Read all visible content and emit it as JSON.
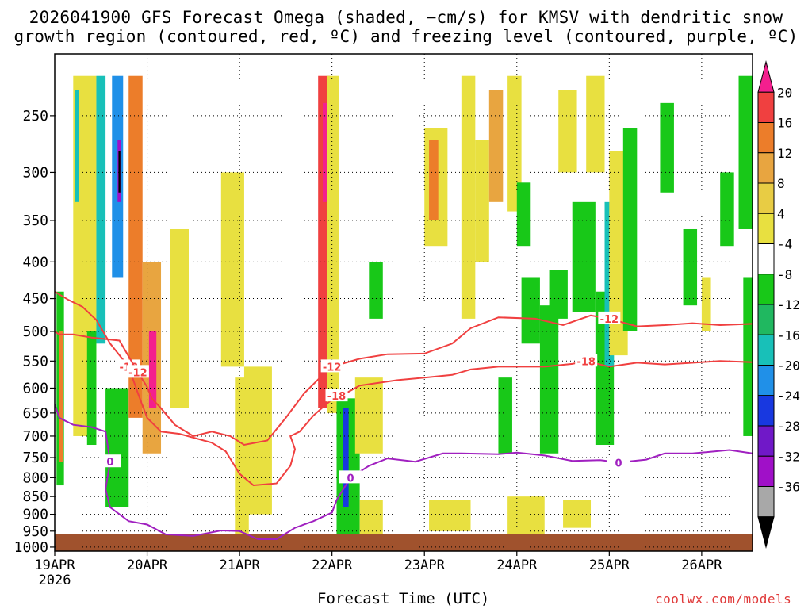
{
  "title": {
    "line1": "2026041900 GFS Forecast Omega (shaded, −cm/s) for KMSV with dendritic snow",
    "line2": "growth region (contoured, red, ºC) and freezing level (contoured, purple, ºC)"
  },
  "credit": "coolwx.com/models",
  "chart_data": {
    "type": "heatmap",
    "xlabel": "Forecast Time (UTC)",
    "x_ticks": [
      "19APR",
      "20APR",
      "21APR",
      "22APR",
      "23APR",
      "24APR",
      "25APR",
      "26APR"
    ],
    "x_year": "2026",
    "xlim_days": [
      0,
      7.55
    ],
    "y_ticks": [
      250,
      300,
      350,
      400,
      450,
      500,
      550,
      600,
      650,
      700,
      750,
      800,
      850,
      900,
      950,
      1000
    ],
    "y_tick_labels": [
      "250",
      "300",
      "350",
      "400",
      "450",
      "500",
      "550",
      "600",
      "650",
      "700",
      "750",
      "800",
      "850",
      "900",
      "950",
      "1000"
    ],
    "ylim_hPa": [
      205,
      1013
    ],
    "y_scale": "log-pressure",
    "grid": "dotted",
    "colorbar": {
      "labels": [
        "20",
        "16",
        "12",
        "8",
        "4",
        "-4",
        "-8",
        "-12",
        "-16",
        "-20",
        "-24",
        "-28",
        "-32",
        "-36"
      ],
      "colors": [
        "#f41f8e",
        "#f04040",
        "#ec7d2a",
        "#e8a540",
        "#e8cc44",
        "#e8e040",
        "#ffffff",
        "#18c818",
        "#20b860",
        "#18c0b8",
        "#2090e8",
        "#1838e0",
        "#7018c8",
        "#a010c8",
        "#a8a8a8",
        "#000000"
      ]
    },
    "terrain_color": "#a0522d",
    "contours": [
      {
        "label": "-18",
        "color": "#f04040",
        "points": [
          [
            0.0,
            440
          ],
          [
            0.05,
            444
          ],
          [
            0.15,
            452
          ],
          [
            0.3,
            462
          ],
          [
            0.45,
            482
          ],
          [
            0.6,
            520
          ],
          [
            0.8,
            560
          ],
          [
            0.9,
            610
          ],
          [
            1.0,
            660
          ],
          [
            1.15,
            690
          ],
          [
            1.35,
            695
          ],
          [
            1.7,
            715
          ],
          [
            1.85,
            735
          ],
          [
            2.0,
            790
          ],
          [
            2.15,
            820
          ],
          [
            2.4,
            815
          ],
          [
            2.55,
            770
          ],
          [
            2.6,
            730
          ],
          [
            2.55,
            700
          ],
          [
            2.65,
            690
          ],
          [
            2.8,
            655
          ],
          [
            2.95,
            630
          ],
          [
            3.05,
            615
          ],
          [
            3.15,
            610
          ],
          [
            3.3,
            595
          ],
          [
            3.5,
            590
          ],
          [
            3.7,
            585
          ],
          [
            4.0,
            580
          ],
          [
            4.3,
            575
          ],
          [
            4.5,
            565
          ],
          [
            4.8,
            560
          ],
          [
            5.0,
            560
          ],
          [
            5.3,
            560
          ],
          [
            5.6,
            555
          ],
          [
            5.75,
            550
          ],
          [
            6.0,
            560
          ],
          [
            6.3,
            553
          ],
          [
            6.6,
            556
          ],
          [
            7.0,
            552
          ],
          [
            7.2,
            550
          ],
          [
            7.55,
            552
          ]
        ]
      },
      {
        "label": "-12",
        "color": "#f04040",
        "points": [
          [
            0.0,
            500
          ],
          [
            0.05,
            505
          ],
          [
            0.2,
            505
          ],
          [
            0.4,
            510
          ],
          [
            0.7,
            515
          ],
          [
            0.9,
            570
          ],
          [
            1.0,
            598
          ],
          [
            1.05,
            620
          ],
          [
            1.15,
            640
          ],
          [
            1.3,
            675
          ],
          [
            1.5,
            700
          ],
          [
            1.7,
            690
          ],
          [
            1.9,
            700
          ],
          [
            2.05,
            720
          ],
          [
            2.3,
            710
          ],
          [
            2.5,
            660
          ],
          [
            2.7,
            610
          ],
          [
            2.9,
            575
          ],
          [
            3.0,
            560
          ],
          [
            3.3,
            546
          ],
          [
            3.6,
            538
          ],
          [
            4.0,
            537
          ],
          [
            4.3,
            520
          ],
          [
            4.5,
            495
          ],
          [
            4.8,
            478
          ],
          [
            5.2,
            480
          ],
          [
            5.5,
            490
          ],
          [
            5.8,
            475
          ],
          [
            6.0,
            480
          ],
          [
            6.3,
            492
          ],
          [
            6.6,
            490
          ],
          [
            6.9,
            487
          ],
          [
            7.2,
            490
          ],
          [
            7.55,
            488
          ]
        ]
      },
      {
        "label": "0",
        "color": "#a020c0",
        "points": [
          [
            0.0,
            632
          ],
          [
            0.05,
            660
          ],
          [
            0.2,
            675
          ],
          [
            0.4,
            680
          ],
          [
            0.55,
            690
          ],
          [
            0.6,
            760
          ],
          [
            0.55,
            830
          ],
          [
            0.6,
            880
          ],
          [
            0.8,
            920
          ],
          [
            1.0,
            930
          ],
          [
            1.2,
            960
          ],
          [
            1.5,
            965
          ],
          [
            1.8,
            948
          ],
          [
            2.0,
            950
          ],
          [
            2.2,
            975
          ],
          [
            2.4,
            975
          ],
          [
            2.6,
            940
          ],
          [
            2.8,
            920
          ],
          [
            3.0,
            895
          ],
          [
            3.05,
            860
          ],
          [
            3.2,
            800
          ],
          [
            3.4,
            770
          ],
          [
            3.6,
            752
          ],
          [
            3.9,
            760
          ],
          [
            4.2,
            740
          ],
          [
            4.4,
            740
          ],
          [
            4.8,
            742
          ],
          [
            5.0,
            738
          ],
          [
            5.3,
            745
          ],
          [
            5.6,
            758
          ],
          [
            5.9,
            756
          ],
          [
            6.1,
            762
          ],
          [
            6.4,
            755
          ],
          [
            6.6,
            740
          ],
          [
            6.9,
            740
          ],
          [
            7.3,
            732
          ],
          [
            7.55,
            740
          ]
        ]
      }
    ],
    "shading_cells": [
      [
        0.02,
        0.1,
        440,
        820,
        -8
      ],
      [
        0.05,
        0.09,
        500,
        760,
        12
      ],
      [
        0.2,
        0.45,
        220,
        700,
        4
      ],
      [
        0.22,
        0.26,
        230,
        330,
        -12
      ],
      [
        0.35,
        0.45,
        500,
        720,
        -8
      ],
      [
        0.45,
        0.55,
        220,
        520,
        -12
      ],
      [
        0.62,
        0.74,
        220,
        420,
        -16
      ],
      [
        0.68,
        0.72,
        270,
        330,
        -28
      ],
      [
        0.69,
        0.71,
        280,
        320,
        -36
      ],
      [
        0.55,
        0.8,
        600,
        880,
        -8
      ],
      [
        0.8,
        0.95,
        220,
        660,
        12
      ],
      [
        0.95,
        1.15,
        400,
        740,
        8
      ],
      [
        1.02,
        1.1,
        500,
        640,
        20
      ],
      [
        1.25,
        1.45,
        360,
        640,
        4
      ],
      [
        1.8,
        2.05,
        300,
        560,
        4
      ],
      [
        1.95,
        2.2,
        580,
        880,
        4
      ],
      [
        2.05,
        2.35,
        560,
        900,
        4
      ],
      [
        2.85,
        2.98,
        220,
        640,
        16
      ],
      [
        2.9,
        2.95,
        240,
        330,
        20
      ],
      [
        2.95,
        3.08,
        220,
        650,
        4
      ],
      [
        3.05,
        3.3,
        620,
        1000,
        -8
      ],
      [
        3.12,
        3.18,
        640,
        880,
        -20
      ],
      [
        3.25,
        3.55,
        580,
        740,
        4
      ],
      [
        3.4,
        3.55,
        400,
        480,
        -8
      ],
      [
        4.0,
        4.25,
        260,
        380,
        4
      ],
      [
        4.05,
        4.15,
        270,
        350,
        12
      ],
      [
        4.4,
        4.55,
        220,
        480,
        4
      ],
      [
        4.55,
        4.7,
        270,
        400,
        4
      ],
      [
        4.7,
        4.85,
        230,
        330,
        8
      ],
      [
        4.8,
        4.95,
        580,
        740,
        -8
      ],
      [
        4.9,
        5.05,
        220,
        340,
        4
      ],
      [
        5.0,
        5.15,
        310,
        380,
        -8
      ],
      [
        5.05,
        5.25,
        420,
        520,
        -8
      ],
      [
        5.25,
        5.45,
        460,
        740,
        -8
      ],
      [
        5.35,
        5.55,
        410,
        480,
        -8
      ],
      [
        5.45,
        5.65,
        230,
        300,
        4
      ],
      [
        5.6,
        5.85,
        330,
        470,
        -8
      ],
      [
        5.75,
        5.95,
        220,
        300,
        4
      ],
      [
        5.85,
        6.05,
        440,
        720,
        -8
      ],
      [
        5.95,
        6.05,
        330,
        560,
        -12
      ],
      [
        6.0,
        6.2,
        280,
        540,
        4
      ],
      [
        6.15,
        6.3,
        260,
        500,
        -8
      ],
      [
        6.55,
        6.7,
        240,
        320,
        -8
      ],
      [
        6.8,
        6.95,
        360,
        460,
        -8
      ],
      [
        7.0,
        7.1,
        420,
        500,
        4
      ],
      [
        7.2,
        7.35,
        300,
        380,
        -8
      ],
      [
        7.4,
        7.55,
        220,
        360,
        -8
      ],
      [
        7.45,
        7.55,
        420,
        700,
        -8
      ],
      [
        1.95,
        2.1,
        860,
        960,
        4
      ],
      [
        4.05,
        4.5,
        860,
        950,
        4
      ],
      [
        4.9,
        5.3,
        850,
        960,
        4
      ],
      [
        5.5,
        5.8,
        860,
        940,
        4
      ],
      [
        3.3,
        3.55,
        860,
        960,
        4
      ]
    ]
  }
}
